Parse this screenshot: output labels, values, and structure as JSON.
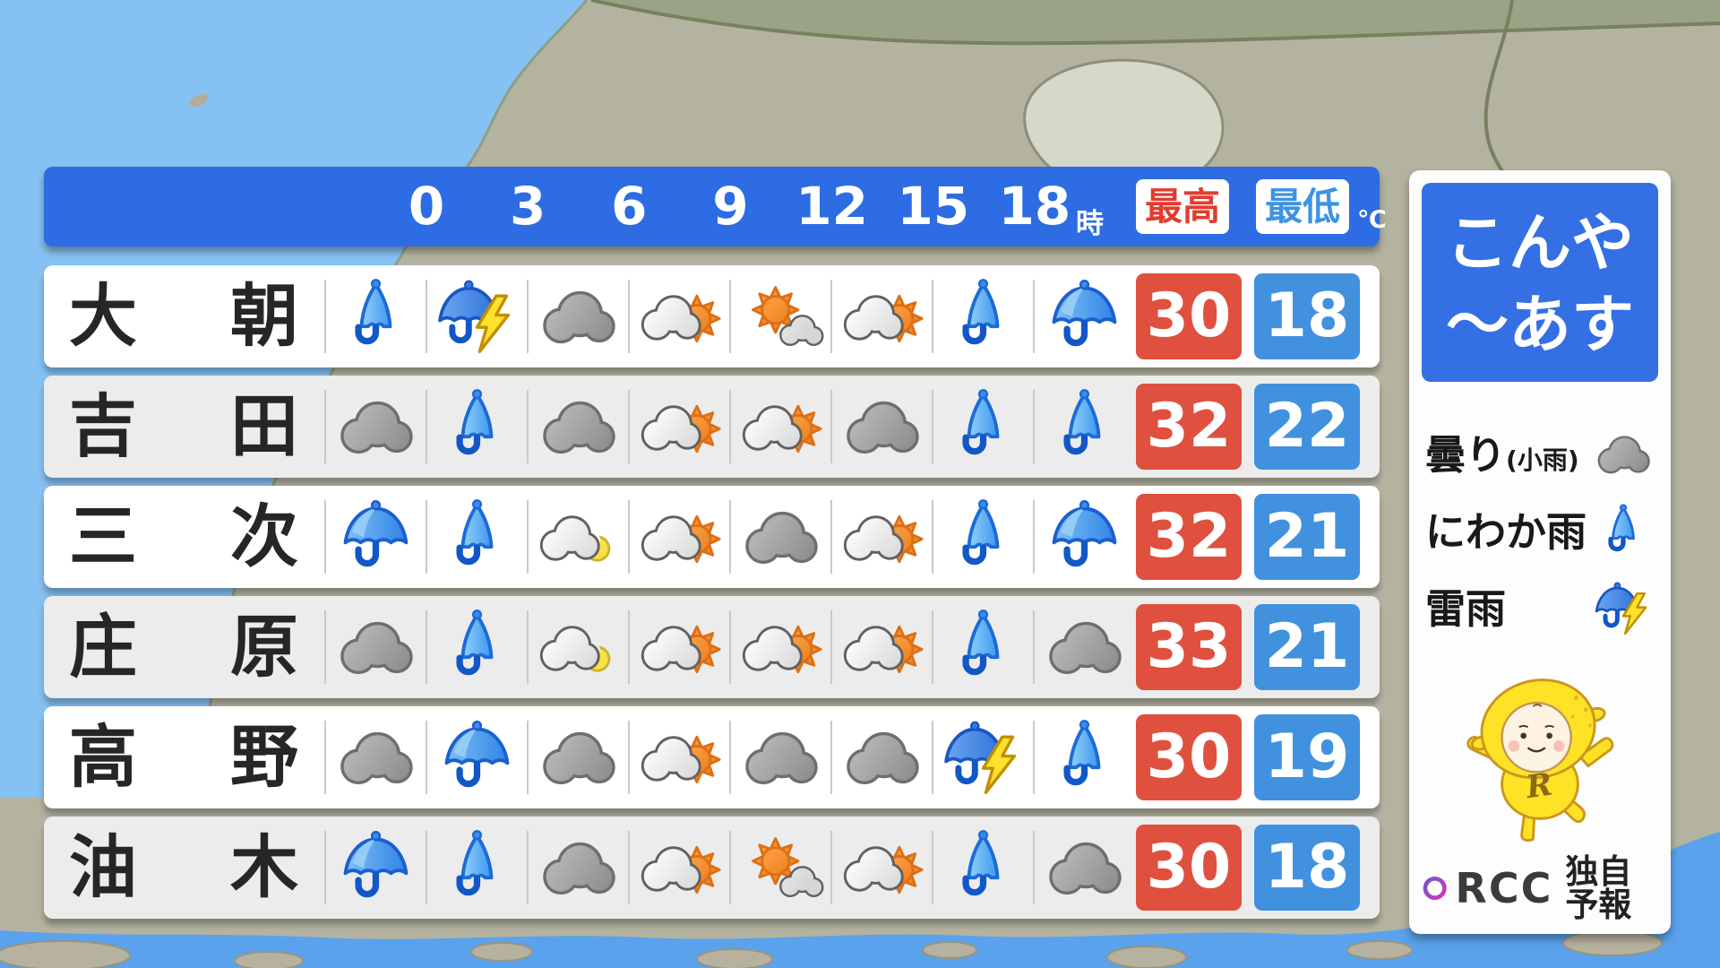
{
  "header": {
    "time_labels": [
      "0",
      "3",
      "6",
      "9",
      "12",
      "15",
      "18"
    ],
    "time_unit": "時",
    "high_label": "最高",
    "low_label": "最低",
    "temp_unit": "℃"
  },
  "forecast_rows": [
    {
      "name": [
        "大",
        "朝"
      ],
      "icons": [
        "shower",
        "thunder",
        "cloud",
        "cloud-sun",
        "sun-cloud",
        "cloud-sun",
        "shower",
        "rain"
      ],
      "high": "30",
      "low": "18"
    },
    {
      "name": [
        "吉",
        "田"
      ],
      "icons": [
        "cloud",
        "shower",
        "cloud",
        "cloud-sun",
        "cloud-sun",
        "cloud",
        "shower",
        "shower"
      ],
      "high": "32",
      "low": "22"
    },
    {
      "name": [
        "三",
        "次"
      ],
      "icons": [
        "rain",
        "shower",
        "cloud-moon",
        "cloud-sun",
        "cloud",
        "cloud-sun",
        "shower",
        "rain"
      ],
      "high": "32",
      "low": "21"
    },
    {
      "name": [
        "庄",
        "原"
      ],
      "icons": [
        "cloud",
        "shower",
        "cloud-moon",
        "cloud-sun",
        "cloud-sun",
        "cloud-sun",
        "shower",
        "cloud"
      ],
      "high": "33",
      "low": "21"
    },
    {
      "name": [
        "高",
        "野"
      ],
      "icons": [
        "cloud",
        "rain",
        "cloud",
        "cloud-sun",
        "cloud",
        "cloud",
        "thunder",
        "shower"
      ],
      "high": "30",
      "low": "19"
    },
    {
      "name": [
        "油",
        "木"
      ],
      "icons": [
        "rain",
        "shower",
        "cloud",
        "cloud-sun",
        "sun-cloud",
        "cloud-sun",
        "shower",
        "cloud"
      ],
      "high": "30",
      "low": "18"
    }
  ],
  "side_panel": {
    "period_title_line1": "こんや",
    "period_title_line2": "～あす",
    "legend": [
      {
        "label": "曇り",
        "label_small": "(小雨)",
        "icon": "cloud"
      },
      {
        "label": "にわか雨",
        "label_small": "",
        "icon": "shower"
      },
      {
        "label": "雷雨",
        "label_small": "",
        "icon": "thunder"
      }
    ],
    "mascot_letter": "R",
    "branding": {
      "station": "RCC",
      "note": "独自予報"
    }
  },
  "colors": {
    "header_bar": "#2d6ce2",
    "badge_high_text": "#e23c2e",
    "badge_low_text": "#3e93e2",
    "temp_high_bg": "#e0503f",
    "temp_low_bg": "#4191de",
    "panel_title_bg": "#3470e4"
  }
}
